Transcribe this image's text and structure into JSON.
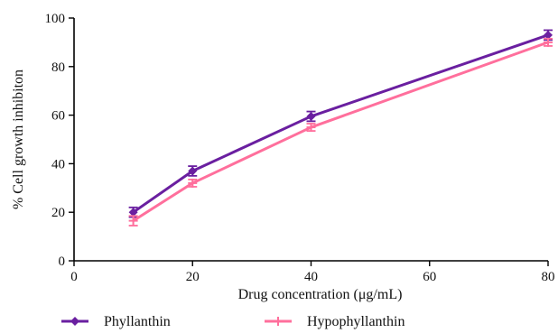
{
  "chart_data": {
    "type": "line",
    "xlabel": "Drug concentration (μg/mL)",
    "ylabel": "% Cell growth inhibiton",
    "xlim": [
      0,
      80
    ],
    "ylim": [
      0,
      100
    ],
    "x_ticks": [
      0,
      20,
      40,
      60,
      80
    ],
    "y_ticks": [
      0,
      20,
      40,
      60,
      80,
      100
    ],
    "grid": false,
    "legend_position": "bottom",
    "series": [
      {
        "name": "Phyllanthin",
        "color": "#6a1fa0",
        "marker": "diamond",
        "x": [
          10,
          20,
          40,
          80
        ],
        "y": [
          20,
          37,
          59.5,
          93
        ],
        "error": [
          2,
          2,
          2,
          2
        ]
      },
      {
        "name": "Hypophyllanthin",
        "color": "#ff6f9c",
        "marker": "cross",
        "x": [
          10,
          20,
          40,
          80
        ],
        "y": [
          16.5,
          32,
          55,
          90
        ],
        "error": [
          2,
          1.5,
          1.5,
          1.5
        ]
      }
    ]
  }
}
